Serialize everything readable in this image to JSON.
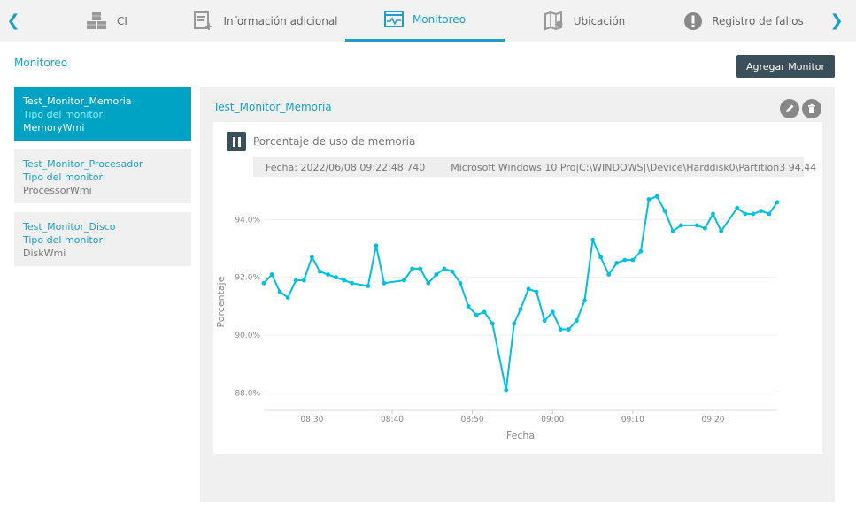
{
  "tabs": [
    {
      "label": "CI",
      "icon": "cubes-icon"
    },
    {
      "label": "Información adicional",
      "icon": "add-document-icon"
    },
    {
      "label": "Monitoreo",
      "icon": "monitor-icon",
      "active": true
    },
    {
      "label": "Ubicación",
      "icon": "map-pin-icon"
    },
    {
      "label": "Registro de fallos",
      "icon": "exclamation-icon"
    }
  ],
  "page_title": "Monitoreo",
  "add_button": "Agregar Monitor",
  "monitors": [
    {
      "name": "Test_Monitor_Memoria",
      "type_label": "Tipo del monitor:",
      "type": "MemoryWmi",
      "active": true
    },
    {
      "name": "Test_Monitor_Procesador",
      "type_label": "Tipo del monitor:",
      "type": "ProcessorWmi"
    },
    {
      "name": "Test_Monitor_Disco",
      "type_label": "Tipo del monitor:",
      "type": "DiskWmi"
    }
  ],
  "detail": {
    "title": "Test_Monitor_Memoria",
    "chart_title": "Porcentaje de uso de memoria",
    "tooltip_date": "Fecha: 2022/06/08 09:22:48.740",
    "tooltip_series": "Microsoft Windows 10 Pro|C:\\WINDOWS|\\Device\\Harddisk0\\Partition3 94.44"
  },
  "colors": {
    "accent": "#1aa0c8",
    "line": "#00bfdf",
    "button_dark": "#3a4f5a"
  },
  "chart_data": {
    "type": "line",
    "xlabel": "Fecha",
    "ylabel": "Porcentaje",
    "x_ticks": [
      "08:30",
      "08:40",
      "08:50",
      "09:00",
      "09:10",
      "09:20"
    ],
    "y_ticks": [
      "88.0%",
      "90.0%",
      "92.0%",
      "94.0%"
    ],
    "x_range_minutes": [
      -6.0,
      58.0
    ],
    "x_unit": "minutes after 08:30",
    "ylim": [
      87.4,
      94.9
    ],
    "grid": true,
    "series": [
      {
        "name": "Microsoft Windows 10 Pro|C:\\WINDOWS|\\Device\\Harddisk0\\Partition3",
        "points": [
          [
            -6.0,
            91.8
          ],
          [
            -5.0,
            92.1
          ],
          [
            -4.0,
            91.5
          ],
          [
            -3.0,
            91.3
          ],
          [
            -2.0,
            91.9
          ],
          [
            -1.0,
            91.9
          ],
          [
            0.0,
            92.7
          ],
          [
            1.0,
            92.2
          ],
          [
            2.0,
            92.1
          ],
          [
            3.0,
            92.0
          ],
          [
            4.0,
            91.9
          ],
          [
            5.0,
            91.8
          ],
          [
            7.0,
            91.7
          ],
          [
            8.0,
            93.1
          ],
          [
            9.0,
            91.8
          ],
          [
            11.5,
            91.9
          ],
          [
            12.5,
            92.3
          ],
          [
            13.5,
            92.3
          ],
          [
            14.5,
            91.8
          ],
          [
            15.5,
            92.1
          ],
          [
            16.5,
            92.3
          ],
          [
            17.5,
            92.2
          ],
          [
            18.5,
            91.8
          ],
          [
            19.5,
            91.0
          ],
          [
            20.5,
            90.7
          ],
          [
            21.5,
            90.8
          ],
          [
            22.5,
            90.4
          ],
          [
            24.2,
            88.1
          ],
          [
            25.2,
            90.4
          ],
          [
            26.0,
            90.9
          ],
          [
            27.0,
            91.6
          ],
          [
            28.0,
            91.5
          ],
          [
            29.0,
            90.5
          ],
          [
            30.0,
            90.8
          ],
          [
            31.0,
            90.2
          ],
          [
            32.0,
            90.2
          ],
          [
            33.0,
            90.5
          ],
          [
            34.0,
            91.2
          ],
          [
            35.0,
            93.3
          ],
          [
            36.0,
            92.7
          ],
          [
            37.0,
            92.1
          ],
          [
            38.0,
            92.5
          ],
          [
            39.0,
            92.6
          ],
          [
            40.0,
            92.6
          ],
          [
            41.0,
            92.9
          ],
          [
            42.0,
            94.7
          ],
          [
            43.0,
            94.8
          ],
          [
            44.0,
            94.3
          ],
          [
            45.0,
            93.6
          ],
          [
            46.0,
            93.8
          ],
          [
            48.0,
            93.8
          ],
          [
            49.0,
            93.7
          ],
          [
            50.0,
            94.2
          ],
          [
            51.0,
            93.6
          ],
          [
            53.0,
            94.4
          ],
          [
            54.0,
            94.2
          ],
          [
            55.0,
            94.2
          ],
          [
            56.0,
            94.3
          ],
          [
            57.0,
            94.2
          ],
          [
            58.0,
            94.6
          ]
        ]
      }
    ]
  }
}
